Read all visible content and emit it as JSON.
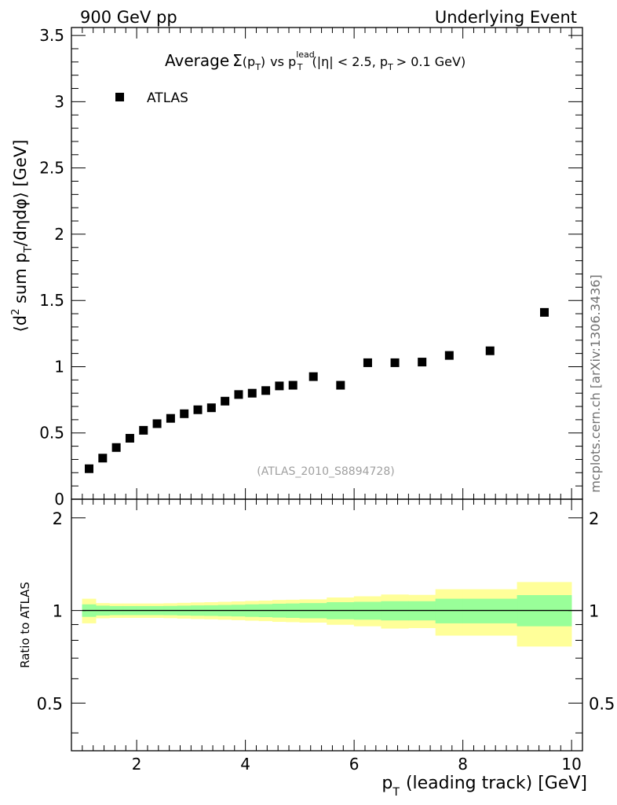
{
  "chart_data": [
    {
      "type": "scatter",
      "title": "Average Σ(p_T) vs p_T^lead (|η| < 2.5, p_T > 0.1 GeV)",
      "title_parts": {
        "average": "Average",
        "sigma": "Σ",
        "open": "(p",
        "sub_t": "T",
        "close": ")",
        "vs": "vs p",
        "lead": "lead",
        "cuts_a": "(|η| < 2.5, p",
        "cuts_b": "> 0.1 GeV)"
      },
      "top_left_label": "900 GeV pp",
      "top_right_label": "Underlying Event",
      "ylabel": "⟨d² sum p_T/dηdφ⟩ [GeV]",
      "ylabel_parts": {
        "a": "⟨d",
        "sup2": "2",
        "b": " sum p",
        "sub_t": "T",
        "c": "/dηdφ⟩ [GeV]"
      },
      "watermark": "(ATLAS_2010_S8894728)",
      "side_label": "mcplots.cern.ch [arXiv:1306.3436]",
      "legend": {
        "position": "top-left",
        "entries": [
          "ATLAS"
        ]
      },
      "xlim": [
        0.8,
        10.2
      ],
      "ylim": [
        0,
        3.56
      ],
      "yticks": [
        0,
        0.5,
        1,
        1.5,
        2,
        2.5,
        3,
        3.5
      ],
      "ytick_labels": [
        "0",
        "0.5",
        "1",
        "1.5",
        "2",
        "2.5",
        "3",
        "3.5"
      ],
      "series": [
        {
          "name": "ATLAS",
          "marker": "square",
          "color": "#000000",
          "x": [
            1.125,
            1.375,
            1.625,
            1.875,
            2.125,
            2.375,
            2.625,
            2.875,
            3.125,
            3.375,
            3.625,
            3.875,
            4.125,
            4.375,
            4.625,
            4.875,
            5.25,
            5.75,
            6.25,
            6.75,
            7.25,
            7.75,
            8.5,
            9.5
          ],
          "y": [
            0.23,
            0.31,
            0.39,
            0.46,
            0.52,
            0.57,
            0.61,
            0.645,
            0.675,
            0.69,
            0.74,
            0.79,
            0.8,
            0.82,
            0.855,
            0.86,
            0.925,
            0.86,
            1.03,
            1.03,
            1.035,
            1.085,
            1.12,
            1.41
          ]
        }
      ]
    },
    {
      "type": "area",
      "ylabel": "Ratio to ATLAS",
      "xlabel": "p_T (leading track) [GeV]",
      "xlabel_parts": {
        "p": "p",
        "sub_t": "T",
        "rest": "(leading track) [GeV]"
      },
      "xlim": [
        0.8,
        10.2
      ],
      "ylim": [
        0.35,
        2.3
      ],
      "xticks": [
        2,
        4,
        6,
        8,
        10
      ],
      "xtick_labels": [
        "2",
        "4",
        "6",
        "8",
        "10"
      ],
      "yticks": [
        0.5,
        1,
        2
      ],
      "ytick_labels": [
        "0.5",
        "1",
        "2"
      ],
      "reference_line": 1,
      "bin_edges": [
        1.0,
        1.25,
        1.5,
        1.75,
        2.0,
        2.25,
        2.5,
        2.75,
        3.0,
        3.25,
        3.5,
        3.75,
        4.0,
        4.25,
        4.5,
        4.75,
        5.0,
        5.5,
        6.0,
        6.5,
        7.0,
        7.5,
        8.0,
        9.0,
        10.0
      ],
      "bands": [
        {
          "name": "stat",
          "color": "#99ff99",
          "low": [
            0.955,
            0.965,
            0.968,
            0.968,
            0.968,
            0.968,
            0.967,
            0.965,
            0.963,
            0.962,
            0.96,
            0.958,
            0.955,
            0.953,
            0.95,
            0.948,
            0.945,
            0.938,
            0.935,
            0.93,
            0.93,
            0.91,
            0.91,
            0.89
          ],
          "high": [
            1.045,
            1.035,
            1.032,
            1.032,
            1.032,
            1.032,
            1.033,
            1.035,
            1.037,
            1.038,
            1.04,
            1.042,
            1.045,
            1.047,
            1.05,
            1.052,
            1.055,
            1.062,
            1.065,
            1.07,
            1.07,
            1.09,
            1.09,
            1.12
          ]
        },
        {
          "name": "total",
          "color": "#ffff99",
          "low": [
            0.91,
            0.945,
            0.948,
            0.948,
            0.948,
            0.948,
            0.946,
            0.943,
            0.94,
            0.938,
            0.935,
            0.932,
            0.928,
            0.925,
            0.92,
            0.918,
            0.915,
            0.9,
            0.89,
            0.875,
            0.878,
            0.83,
            0.83,
            0.765
          ],
          "high": [
            1.09,
            1.055,
            1.052,
            1.052,
            1.052,
            1.052,
            1.054,
            1.057,
            1.06,
            1.062,
            1.065,
            1.068,
            1.072,
            1.075,
            1.08,
            1.082,
            1.085,
            1.1,
            1.11,
            1.125,
            1.122,
            1.17,
            1.17,
            1.235
          ]
        }
      ]
    }
  ]
}
